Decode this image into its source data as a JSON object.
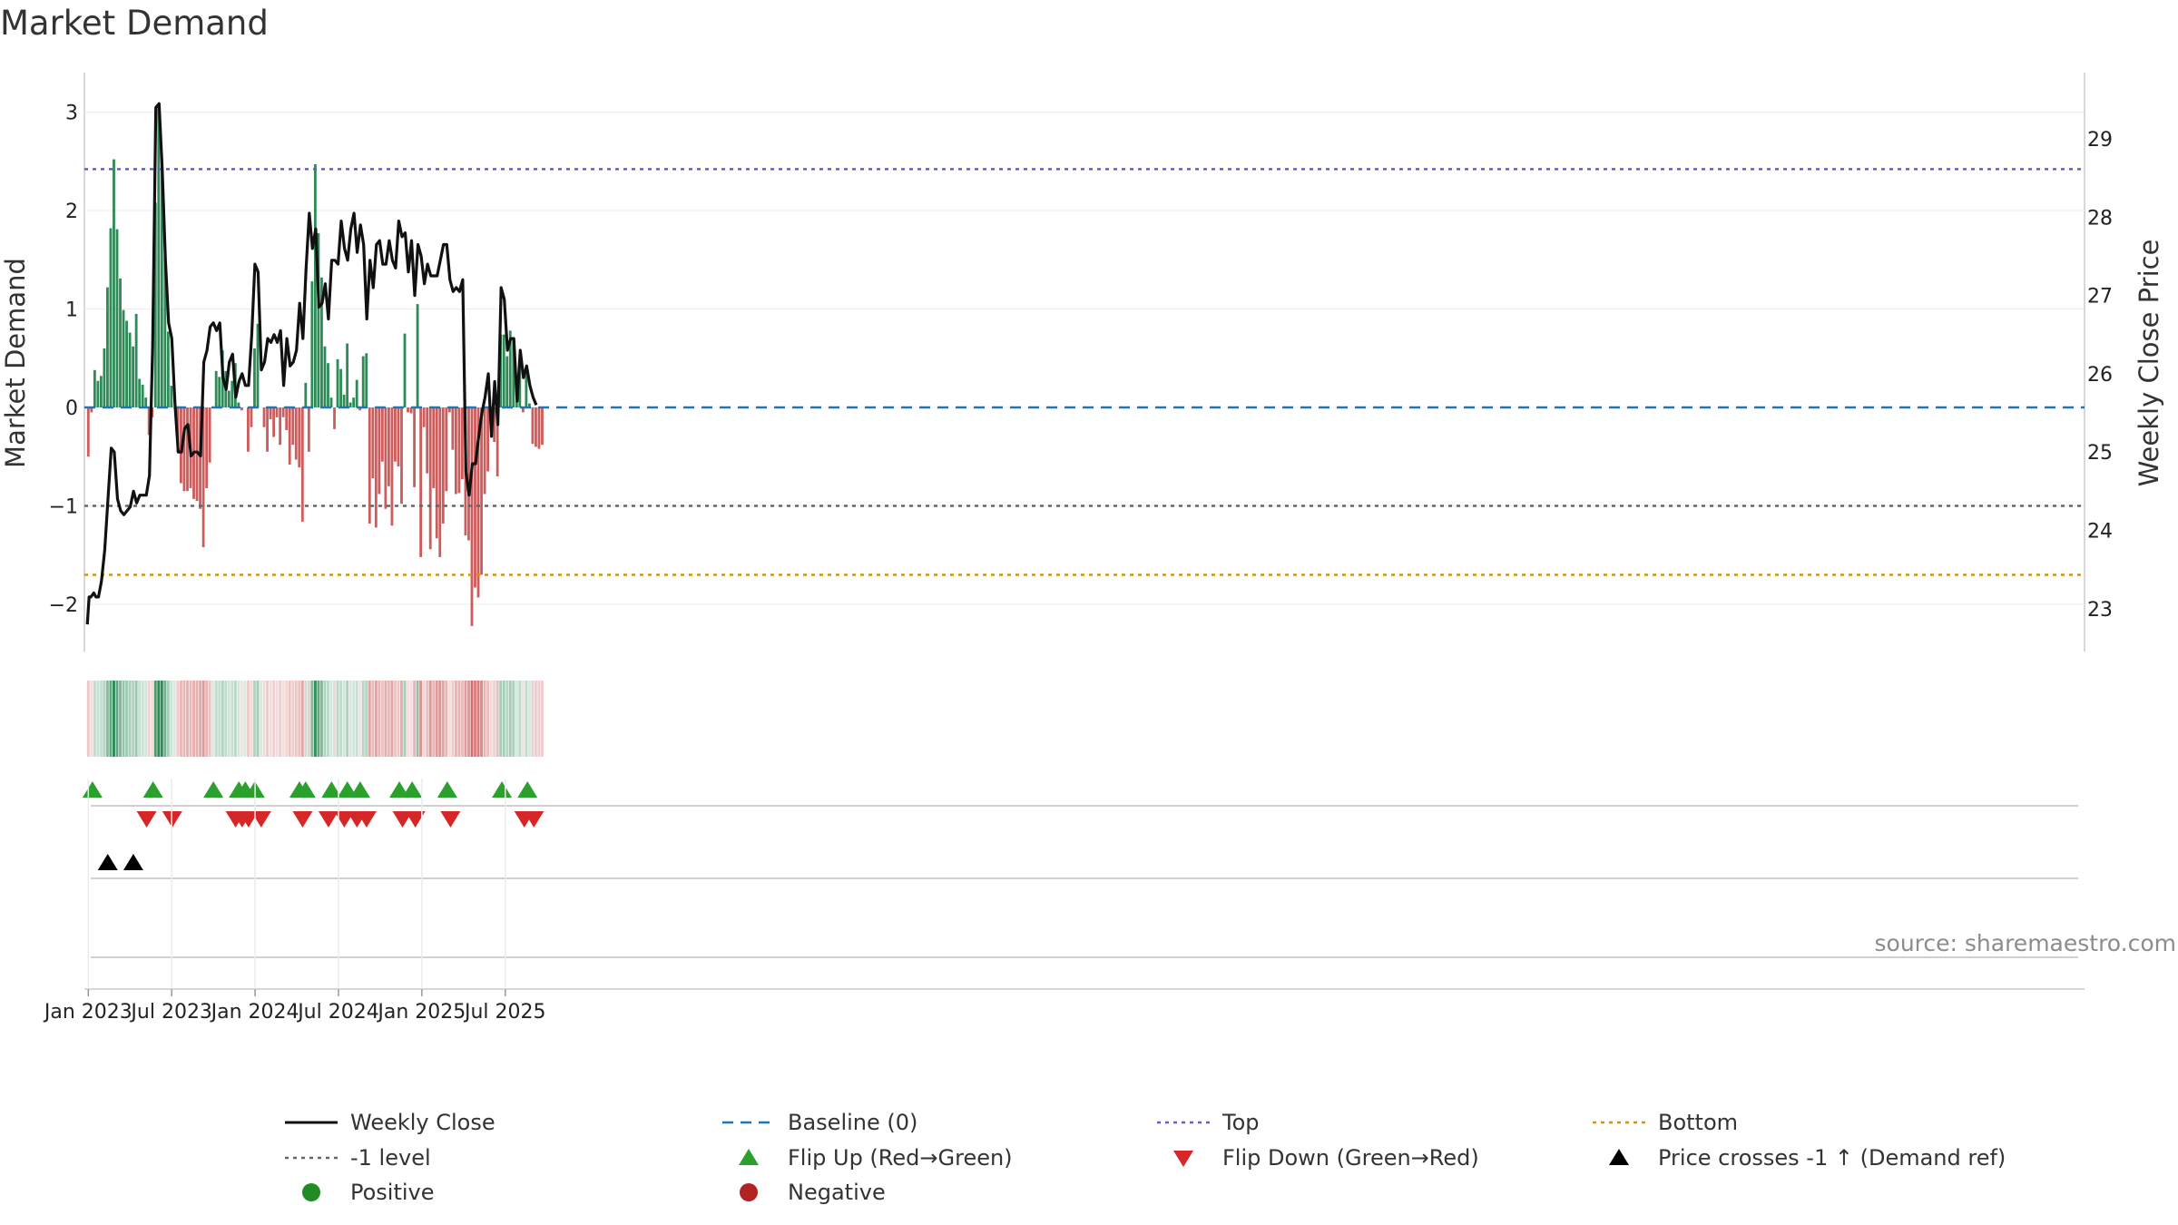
{
  "chart_data": {
    "type": "bar",
    "title": "Market Demand",
    "ylabel": "Market Demand",
    "y2label": "Weekly Close Price",
    "ylim": [
      -2.5,
      3.2
    ],
    "y2lim": [
      22.6,
      29.6
    ],
    "yticks": [
      3,
      2,
      1,
      0,
      -1,
      -2
    ],
    "ytick_labels": [
      "3",
      "2",
      "1",
      "0",
      "−1",
      "−2"
    ],
    "y2ticks": [
      29,
      28,
      27,
      26,
      25,
      24,
      23
    ],
    "y2tick_labels": [
      "29",
      "28",
      "27",
      "26",
      "25",
      "24",
      "23"
    ],
    "x_months": [
      -0.15,
      143.5
    ],
    "xticks": [
      {
        "label": "Jan 2023",
        "month": 0
      },
      {
        "label": "Jul 2023",
        "month": 6
      },
      {
        "label": "Jan 2024",
        "month": 12
      },
      {
        "label": "Jul 2024",
        "month": 18
      },
      {
        "label": "Jan 2025",
        "month": 24
      },
      {
        "label": "Jul 2025",
        "month": 30
      }
    ],
    "reference_lines": {
      "baseline": 0,
      "level": -1,
      "top": 2.42,
      "bottom": -1.7
    },
    "colors": {
      "positive": "#2e8b57",
      "negative": "#cd5c5c",
      "price": "#111111",
      "baseline": "#1f77b4",
      "level": "#666666",
      "top": "#6a5acd",
      "bottom": "#d4940c",
      "flip_up": "#2ca02c",
      "flip_down": "#d62728",
      "cross": "#000000"
    },
    "demand_values": [
      -0.5,
      -0.05,
      0.38,
      0.27,
      0.32,
      0.6,
      1.22,
      1.82,
      2.52,
      1.81,
      1.31,
      0.99,
      0.88,
      0.76,
      0.62,
      0.95,
      0.29,
      0.23,
      0.1,
      -0.28,
      -0.1,
      2.08,
      3.07,
      2.53,
      1.55,
      0.77,
      0.22,
      0.0,
      -0.45,
      -0.77,
      -0.85,
      -0.85,
      -0.82,
      -0.93,
      -0.95,
      -1.03,
      -1.42,
      -0.82,
      -0.56,
      0.0,
      0.37,
      0.31,
      0.58,
      0.37,
      0.17,
      0.27,
      0.45,
      0.05,
      -0.03,
      0.0,
      -0.45,
      -0.2,
      0.6,
      0.85,
      0.0,
      -0.2,
      -0.45,
      -0.12,
      -0.3,
      -0.1,
      -0.38,
      -0.1,
      -0.23,
      -0.58,
      -0.38,
      -0.53,
      -0.61,
      -1.16,
      0.25,
      -0.45,
      1.28,
      2.47,
      1.77,
      1.32,
      0.62,
      0.45,
      0.1,
      -0.22,
      0.49,
      0.39,
      0.13,
      0.65,
      0.05,
      0.1,
      0.28,
      -0.03,
      0.52,
      0.55,
      -1.18,
      -0.72,
      -1.22,
      -0.88,
      -0.55,
      -1.03,
      -0.8,
      -1.2,
      -0.55,
      -0.6,
      -0.98,
      0.75,
      -0.05,
      -0.06,
      -0.81,
      1.05,
      -1.52,
      -0.2,
      -0.67,
      -1.44,
      -0.82,
      -1.33,
      -1.52,
      -1.18,
      -0.85,
      -0.05,
      -0.43,
      -0.88,
      -0.87,
      -0.73,
      -1.3,
      -1.35,
      -2.22,
      -1.83,
      -1.93,
      -1.7,
      -0.88,
      -0.65,
      -0.2,
      -0.35,
      -0.7,
      0.74,
      0.74,
      0.52,
      0.78,
      0.7,
      0.06,
      0.44,
      -0.05,
      0.37,
      0.04,
      -0.37,
      -0.4,
      -0.42,
      -0.38
    ],
    "demand_month": [
      0.0,
      0.23,
      0.46,
      0.69,
      0.92,
      1.15,
      1.38,
      1.61,
      1.84,
      2.07,
      2.3,
      2.53,
      2.76,
      2.99,
      3.22,
      3.45,
      3.68,
      3.91,
      4.14,
      4.37,
      4.6,
      4.83,
      5.06,
      5.29,
      5.52,
      5.75,
      5.98,
      6.21,
      6.44,
      6.67,
      6.9,
      7.13,
      7.36,
      7.59,
      7.82,
      8.05,
      8.28,
      8.51,
      8.74,
      8.97,
      9.2,
      9.43,
      9.66,
      9.89,
      10.12,
      10.35,
      10.58,
      10.81,
      11.04,
      11.27,
      11.5,
      11.73,
      11.96,
      12.19,
      12.42,
      12.65,
      12.88,
      13.11,
      13.34,
      13.57,
      13.8,
      14.03,
      14.26,
      14.49,
      14.72,
      14.95,
      15.18,
      15.41,
      15.64,
      15.87,
      16.1,
      16.33,
      16.56,
      16.79,
      17.02,
      17.25,
      17.48,
      17.71,
      17.94,
      18.17,
      18.4,
      18.63,
      18.86,
      19.09,
      19.32,
      19.55,
      19.78,
      20.01,
      20.24,
      20.47,
      20.7,
      20.93,
      21.16,
      21.39,
      21.62,
      21.85,
      22.08,
      22.31,
      22.54,
      22.77,
      23.0,
      23.23,
      23.46,
      23.69,
      23.92,
      24.15,
      24.38,
      24.61,
      24.84,
      25.07,
      25.3,
      25.53,
      25.76,
      25.99,
      26.22,
      26.45,
      26.68,
      26.91,
      27.14,
      27.37,
      27.6,
      27.83,
      28.06,
      28.29,
      28.52,
      28.75,
      28.98,
      29.21,
      29.44,
      29.67,
      29.9,
      30.13,
      30.36,
      30.59,
      30.82,
      31.05,
      31.28,
      31.51,
      31.74,
      31.97,
      32.2,
      32.43,
      32.66,
      32.89
    ],
    "price_values": [
      22.8,
      23.15,
      23.15,
      23.2,
      23.15,
      23.15,
      23.35,
      23.75,
      24.35,
      25.05,
      25.0,
      24.4,
      24.25,
      24.2,
      24.25,
      24.3,
      24.5,
      24.35,
      24.45,
      24.45,
      24.45,
      24.7,
      26.35,
      29.4,
      29.45,
      28.6,
      27.45,
      26.65,
      26.45,
      25.6,
      25.0,
      25.0,
      25.3,
      25.35,
      24.95,
      25.0,
      25.0,
      24.95,
      26.15,
      26.3,
      26.6,
      26.65,
      26.55,
      26.65,
      25.95,
      25.8,
      26.15,
      26.25,
      25.7,
      25.9,
      26.0,
      25.85,
      25.85,
      26.5,
      27.4,
      27.3,
      26.05,
      26.15,
      26.45,
      26.4,
      26.5,
      26.4,
      26.55,
      25.85,
      26.45,
      26.1,
      26.15,
      26.3,
      26.9,
      26.45,
      27.35,
      28.05,
      27.6,
      27.85,
      26.85,
      26.9,
      27.15,
      26.7,
      27.45,
      27.45,
      27.4,
      27.95,
      27.6,
      27.45,
      27.85,
      28.05,
      27.55,
      27.9,
      27.65,
      26.7,
      27.45,
      27.1,
      27.65,
      27.7,
      27.4,
      27.4,
      27.7,
      27.45,
      27.35,
      27.95,
      27.75,
      27.8,
      27.3,
      27.7,
      27.0,
      27.65,
      27.5,
      27.15,
      27.4,
      27.25,
      27.25,
      27.25,
      27.45,
      27.65,
      27.65,
      27.2,
      27.05,
      27.1,
      27.05,
      27.2,
      24.75,
      24.45,
      24.85,
      24.85,
      25.2,
      25.5,
      25.7,
      26.0,
      25.2,
      25.9,
      25.35,
      27.1,
      26.95,
      26.3,
      26.45,
      26.45,
      25.65,
      26.3,
      25.95,
      26.1,
      25.85,
      25.7,
      25.6
    ],
    "price_month": [
      -0.07,
      0.06,
      0.18,
      0.4,
      0.55,
      0.73,
      0.95,
      1.18,
      1.4,
      1.65,
      1.87,
      2.1,
      2.33,
      2.56,
      2.79,
      3.02,
      3.25,
      3.48,
      3.71,
      3.94,
      4.17,
      4.4,
      4.63,
      4.86,
      5.09,
      5.32,
      5.55,
      5.78,
      6.01,
      6.24,
      6.47,
      6.7,
      6.93,
      7.16,
      7.39,
      7.62,
      7.85,
      8.08,
      8.31,
      8.54,
      8.77,
      9.0,
      9.23,
      9.46,
      9.69,
      9.92,
      10.15,
      10.38,
      10.61,
      10.84,
      11.07,
      11.3,
      11.53,
      11.76,
      11.99,
      12.22,
      12.45,
      12.68,
      12.91,
      13.14,
      13.37,
      13.6,
      13.83,
      14.06,
      14.29,
      14.52,
      14.75,
      14.98,
      15.21,
      15.44,
      15.67,
      15.9,
      16.13,
      16.36,
      16.59,
      16.82,
      17.05,
      17.28,
      17.51,
      17.74,
      17.97,
      18.2,
      18.43,
      18.66,
      18.89,
      19.12,
      19.35,
      19.58,
      19.81,
      20.04,
      20.27,
      20.5,
      20.73,
      20.96,
      21.19,
      21.42,
      21.65,
      21.88,
      22.11,
      22.34,
      22.57,
      22.8,
      23.03,
      23.26,
      23.49,
      23.72,
      23.95,
      24.18,
      24.41,
      24.64,
      24.87,
      25.1,
      25.33,
      25.56,
      25.79,
      26.02,
      26.25,
      26.48,
      26.71,
      26.94,
      27.17,
      27.4,
      27.63,
      27.86,
      28.09,
      28.32,
      28.55,
      28.78,
      29.01,
      29.24,
      29.47,
      29.7,
      29.93,
      30.16,
      30.39,
      30.62,
      30.85,
      31.08,
      31.31,
      31.54,
      31.77,
      32.0,
      32.23,
      32.46,
      32.69,
      32.92
    ],
    "flip_up_months": [
      0.3,
      4.66,
      9.0,
      10.83,
      11.3,
      11.98,
      15.19,
      15.64,
      17.5,
      18.64,
      19.56,
      22.38,
      23.3,
      25.83,
      29.76,
      31.6
    ],
    "flip_down_months": [
      4.2,
      6.04,
      10.6,
      11.07,
      11.53,
      12.44,
      15.42,
      17.28,
      18.42,
      19.33,
      20.02,
      22.61,
      23.53,
      26.06,
      31.37,
      32.06
    ],
    "price_cross_months": [
      1.4,
      3.24
    ],
    "legend": [
      {
        "label": "Weekly Close",
        "marker": "line"
      },
      {
        "label": "Baseline (0)",
        "marker": "dash-line"
      },
      {
        "label": "Top",
        "marker": "dot-line"
      },
      {
        "label": "Bottom",
        "marker": "dot-line"
      },
      {
        "label": "-1 level",
        "marker": "dot-line"
      },
      {
        "label": "Flip Up (Red→Green)",
        "marker": "triangle-up"
      },
      {
        "label": "Flip Down (Green→Red)",
        "marker": "triangle-down"
      },
      {
        "label": "Price crosses -1 ↑ (Demand ref)",
        "marker": "triangle-up"
      },
      {
        "label": "Positive",
        "marker": "circle"
      },
      {
        "label": "Negative",
        "marker": "circle"
      }
    ],
    "source": "source: sharemaestro.com"
  }
}
